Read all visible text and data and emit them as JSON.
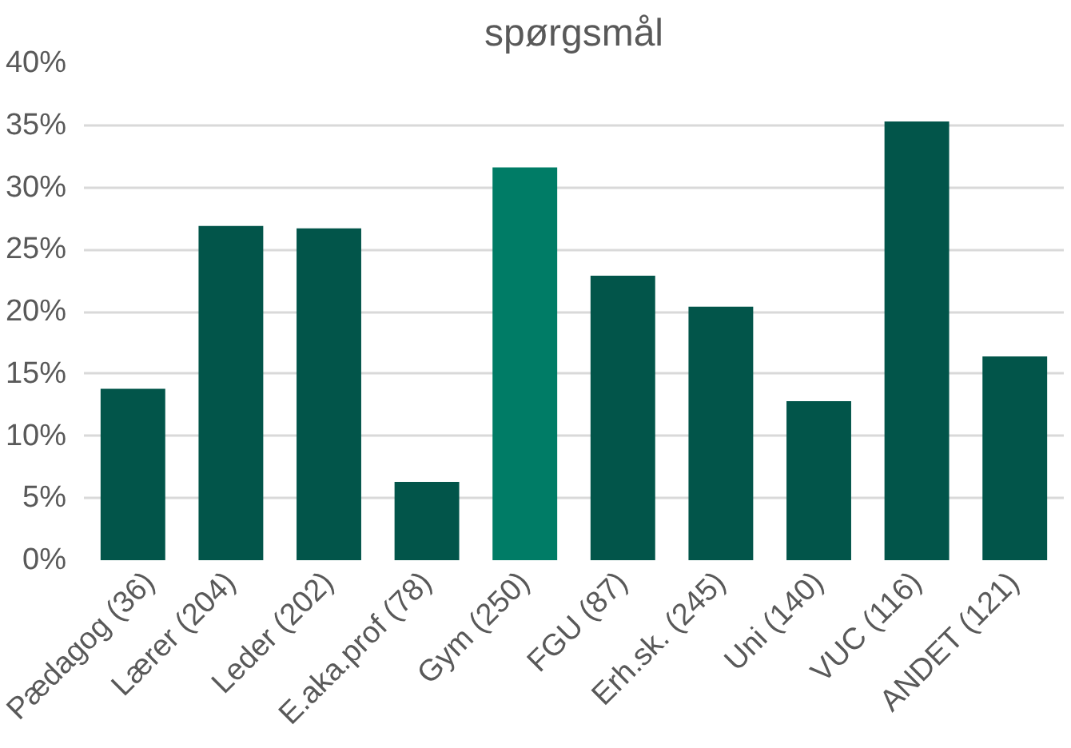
{
  "chart_data": {
    "type": "bar",
    "title": "spørgsmål",
    "categories": [
      "Pædagog (36)",
      "Lærer (204)",
      "Leder (202)",
      "E.aka.prof (78)",
      "Gym (250)",
      "FGU (87)",
      "Erh.sk. (245)",
      "Uni (140)",
      "VUC (116)",
      "ANDET (121)"
    ],
    "values": [
      13.8,
      26.9,
      26.7,
      6.3,
      31.6,
      22.9,
      20.4,
      12.8,
      35.3,
      16.4
    ],
    "colors": [
      "#02554a",
      "#02554a",
      "#02554a",
      "#02554a",
      "#007c66",
      "#02554a",
      "#02554a",
      "#02554a",
      "#02554a",
      "#02554a"
    ],
    "ylim": [
      0,
      40
    ],
    "yticks": [
      {
        "value": 0,
        "label": "0%"
      },
      {
        "value": 5,
        "label": "5%"
      },
      {
        "value": 10,
        "label": "10%"
      },
      {
        "value": 15,
        "label": "15%"
      },
      {
        "value": 20,
        "label": "20%"
      },
      {
        "value": 25,
        "label": "25%"
      },
      {
        "value": 30,
        "label": "30%"
      },
      {
        "value": 35,
        "label": "35%"
      },
      {
        "value": 40,
        "label": "40%"
      }
    ],
    "grid": "y"
  }
}
